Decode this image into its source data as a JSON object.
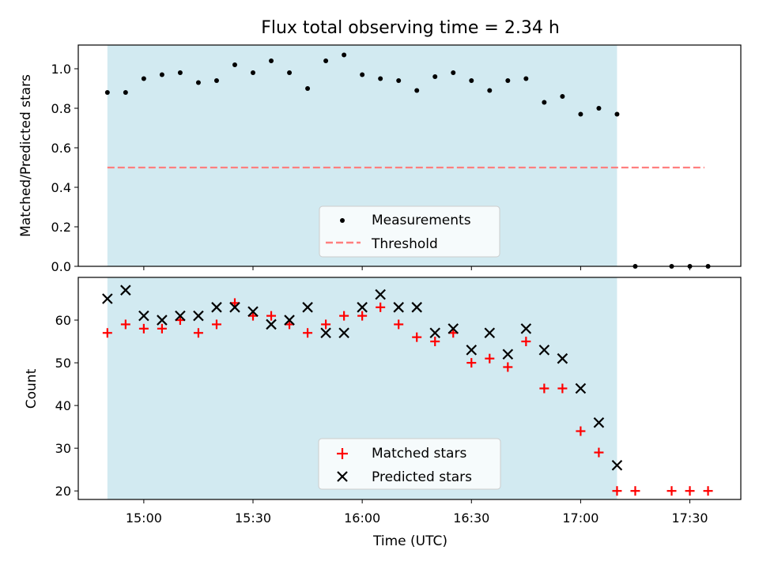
{
  "chart_data": [
    {
      "type": "scatter",
      "title": "Flux total observing time = 2.34 h",
      "xlabel": "",
      "ylabel": "Matched/Predicted stars",
      "xlim_minutes": [
        882,
        1064
      ],
      "ylim": [
        0,
        1.12
      ],
      "yticks": [
        0.0,
        0.2,
        0.4,
        0.6,
        0.8,
        1.0
      ],
      "ytick_labels": [
        "0.0",
        "0.2",
        "0.4",
        "0.6",
        "0.8",
        "1.0"
      ],
      "observing_span_minutes": [
        890,
        1030
      ],
      "threshold": {
        "name": "Threshold",
        "value": 0.5,
        "x_minutes": [
          890,
          1054
        ],
        "color": "#ff7f7f"
      },
      "series": [
        {
          "name": "Measurements",
          "color": "#000000",
          "x_minutes": [
            890,
            895,
            900,
            905,
            910,
            915,
            920,
            925,
            930,
            935,
            940,
            945,
            950,
            955,
            960,
            965,
            970,
            975,
            980,
            985,
            990,
            995,
            1000,
            1005,
            1010,
            1015,
            1020,
            1025,
            1030,
            1035,
            1045,
            1050,
            1055
          ],
          "values": [
            0.88,
            0.88,
            0.95,
            0.97,
            0.98,
            0.93,
            0.94,
            1.02,
            0.98,
            1.04,
            0.98,
            0.9,
            1.04,
            1.07,
            0.97,
            0.95,
            0.94,
            0.89,
            0.96,
            0.98,
            0.94,
            0.89,
            0.94,
            0.95,
            0.83,
            0.86,
            0.77,
            0.8,
            0.77,
            0.0,
            0.0,
            0.0,
            0.0
          ]
        }
      ],
      "legend": {
        "position": "lower-center",
        "entries": [
          "Measurements",
          "Threshold"
        ]
      }
    },
    {
      "type": "scatter",
      "title": "",
      "xlabel": "Time (UTC)",
      "ylabel": "Count",
      "xlim_minutes": [
        882,
        1064
      ],
      "ylim": [
        18,
        70
      ],
      "yticks": [
        20,
        30,
        40,
        50,
        60
      ],
      "ytick_labels": [
        "20",
        "30",
        "40",
        "50",
        "60"
      ],
      "xticks_minutes": [
        900,
        930,
        960,
        990,
        1020,
        1050
      ],
      "xtick_labels": [
        "15:00",
        "15:30",
        "16:00",
        "16:30",
        "17:00",
        "17:30"
      ],
      "observing_span_minutes": [
        890,
        1030
      ],
      "series": [
        {
          "name": "Matched stars",
          "marker": "plus",
          "color": "#ff0000",
          "x_minutes": [
            890,
            895,
            900,
            905,
            910,
            915,
            920,
            925,
            930,
            935,
            940,
            945,
            950,
            955,
            960,
            965,
            970,
            975,
            980,
            985,
            990,
            995,
            1000,
            1005,
            1010,
            1015,
            1020,
            1025,
            1030,
            1035,
            1045,
            1050,
            1055
          ],
          "values": [
            57,
            59,
            58,
            58,
            60,
            57,
            59,
            64,
            61,
            61,
            59,
            57,
            59,
            61,
            61,
            63,
            59,
            56,
            55,
            57,
            50,
            51,
            49,
            55,
            44,
            44,
            34,
            29,
            20,
            20,
            20,
            20,
            20
          ]
        },
        {
          "name": "Predicted stars",
          "marker": "x",
          "color": "#000000",
          "x_minutes": [
            890,
            895,
            900,
            905,
            910,
            915,
            920,
            925,
            930,
            935,
            940,
            945,
            950,
            955,
            960,
            965,
            970,
            975,
            980,
            985,
            990,
            995,
            1000,
            1005,
            1010,
            1015,
            1020,
            1025,
            1030
          ],
          "values": [
            65,
            67,
            61,
            60,
            61,
            61,
            63,
            63,
            62,
            59,
            60,
            63,
            57,
            57,
            63,
            66,
            63,
            63,
            57,
            58,
            53,
            57,
            52,
            58,
            53,
            51,
            44,
            36,
            26
          ]
        }
      ],
      "legend": {
        "position": "lower-center",
        "entries": [
          "Matched stars",
          "Predicted stars"
        ]
      }
    }
  ],
  "colors": {
    "span": "#add8e6",
    "threshold": "#ff7f7f",
    "matched": "#ff0000",
    "predicted": "#000000"
  }
}
